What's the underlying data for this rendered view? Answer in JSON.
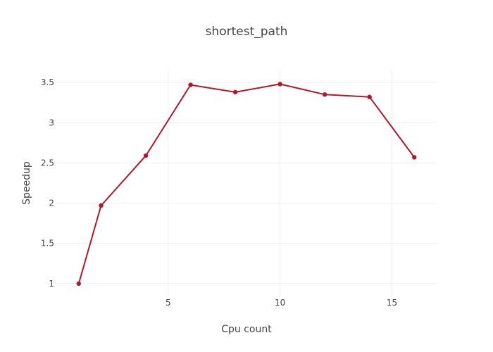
{
  "chart_data": {
    "type": "line",
    "title": "shortest_path",
    "xlabel": "Cpu count",
    "ylabel": "Speedup",
    "x": [
      1,
      2,
      4,
      6,
      8,
      10,
      12,
      14,
      16
    ],
    "series": [
      {
        "values": [
          1.0,
          1.97,
          2.59,
          3.47,
          3.38,
          3.48,
          3.35,
          3.32,
          2.57
        ],
        "color": "#b2182b"
      }
    ],
    "xlim": [
      0,
      17
    ],
    "ylim": [
      0.85,
      3.65
    ],
    "xticks": [
      5,
      10,
      15
    ],
    "yticks": [
      1,
      1.5,
      2,
      2.5,
      3,
      3.5
    ],
    "xtick_labels": [
      "5",
      "10",
      "15"
    ],
    "ytick_labels": [
      "1",
      "1.5",
      "2",
      "2.5",
      "3",
      "3.5"
    ],
    "grid": true,
    "legend": "none"
  }
}
